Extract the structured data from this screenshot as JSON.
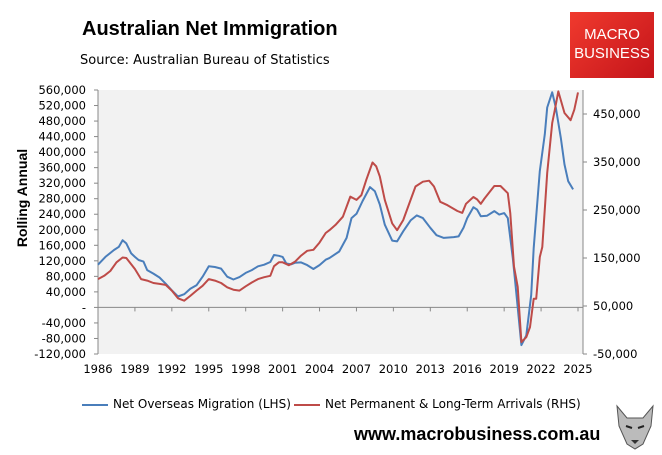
{
  "header": {
    "title": "Australian Net Immigration",
    "source": "Source: Australian Bureau of Statistics",
    "logo_text": "MACRO BUSINESS"
  },
  "footer": {
    "website": "www.macrobusiness.com.au"
  },
  "colors": {
    "nom": "#4a7ebb",
    "plt": "#be4b48",
    "plot_bg": "#f2f2f2",
    "logo": "#e0252a"
  },
  "chart_data": {
    "type": "line",
    "title": "Australian Net Immigration",
    "ylabel": "Rolling Annual",
    "xlim": [
      1986,
      2025
    ],
    "x_ticks": [
      "1986",
      "1989",
      "1992",
      "1995",
      "1998",
      "2001",
      "2004",
      "2007",
      "2010",
      "2013",
      "2016",
      "2019",
      "2022",
      "2025"
    ],
    "ylim_left": [
      -120000,
      560000
    ],
    "y_ticks_left": [
      "560,000",
      "520,000",
      "480,000",
      "440,000",
      "400,000",
      "360,000",
      "320,000",
      "280,000",
      "240,000",
      "200,000",
      "160,000",
      "120,000",
      "80,000",
      "40,000",
      "-",
      "-40,000",
      "-80,000",
      "-120,000"
    ],
    "ylim_right": [
      -50000,
      500000
    ],
    "y_ticks_right": [
      "450,000",
      "350,000",
      "250,000",
      "150,000",
      "50,000",
      "-50,000"
    ],
    "grid": false,
    "legend": "bottom",
    "series": [
      {
        "name": "Net Overseas Migration (LHS)",
        "axis": "left",
        "color": "#4a7ebb",
        "points": [
          [
            1986.0,
            110000
          ],
          [
            1986.6,
            130000
          ],
          [
            1987.3,
            148000
          ],
          [
            1987.7,
            156000
          ],
          [
            1988.0,
            173000
          ],
          [
            1988.3,
            165000
          ],
          [
            1988.7,
            139000
          ],
          [
            1989.0,
            130000
          ],
          [
            1989.3,
            122000
          ],
          [
            1989.7,
            118000
          ],
          [
            1990.0,
            96000
          ],
          [
            1990.5,
            87000
          ],
          [
            1991.0,
            77000
          ],
          [
            1991.5,
            61000
          ],
          [
            1992.0,
            44000
          ],
          [
            1992.5,
            28000
          ],
          [
            1993.0,
            34000
          ],
          [
            1993.5,
            48000
          ],
          [
            1994.0,
            57000
          ],
          [
            1994.5,
            79000
          ],
          [
            1995.0,
            106000
          ],
          [
            1995.5,
            104000
          ],
          [
            1996.0,
            100000
          ],
          [
            1996.5,
            79000
          ],
          [
            1997.0,
            72000
          ],
          [
            1997.5,
            78000
          ],
          [
            1998.0,
            89000
          ],
          [
            1998.5,
            96000
          ],
          [
            1999.0,
            106000
          ],
          [
            1999.5,
            110000
          ],
          [
            2000.0,
            117000
          ],
          [
            2000.3,
            135000
          ],
          [
            2000.7,
            133000
          ],
          [
            2001.0,
            130000
          ],
          [
            2001.3,
            113000
          ],
          [
            2001.7,
            111000
          ],
          [
            2002.0,
            115000
          ],
          [
            2002.5,
            116000
          ],
          [
            2003.0,
            109000
          ],
          [
            2003.5,
            99000
          ],
          [
            2004.0,
            109000
          ],
          [
            2004.5,
            123000
          ],
          [
            2004.8,
            127000
          ],
          [
            2005.6,
            144000
          ],
          [
            2006.2,
            179000
          ],
          [
            2006.6,
            230000
          ],
          [
            2007.0,
            241000
          ],
          [
            2007.5,
            274000
          ],
          [
            2008.1,
            310000
          ],
          [
            2008.5,
            299000
          ],
          [
            2008.9,
            265000
          ],
          [
            2009.3,
            213000
          ],
          [
            2009.9,
            172000
          ],
          [
            2010.3,
            170000
          ],
          [
            2010.8,
            196000
          ],
          [
            2011.4,
            224000
          ],
          [
            2011.9,
            237000
          ],
          [
            2012.4,
            230000
          ],
          [
            2013.0,
            205000
          ],
          [
            2013.5,
            186000
          ],
          [
            2014.1,
            179000
          ],
          [
            2014.9,
            181000
          ],
          [
            2015.3,
            183000
          ],
          [
            2015.7,
            205000
          ],
          [
            2016.0,
            230000
          ],
          [
            2016.5,
            258000
          ],
          [
            2016.8,
            252000
          ],
          [
            2017.1,
            235000
          ],
          [
            2017.6,
            236000
          ],
          [
            2018.2,
            248000
          ],
          [
            2018.6,
            239000
          ],
          [
            2019.0,
            243000
          ],
          [
            2019.3,
            230000
          ],
          [
            2019.7,
            127000
          ],
          [
            2019.9,
            66000
          ],
          [
            2020.4,
            -97000
          ],
          [
            2020.8,
            -72000
          ],
          [
            2021.2,
            32000
          ],
          [
            2021.4,
            153000
          ],
          [
            2021.9,
            351000
          ],
          [
            2022.3,
            446000
          ],
          [
            2022.5,
            515000
          ],
          [
            2022.9,
            554000
          ],
          [
            2023.2,
            515000
          ],
          [
            2023.6,
            437000
          ],
          [
            2023.9,
            368000
          ],
          [
            2024.2,
            325000
          ],
          [
            2024.6,
            304000
          ]
        ]
      },
      {
        "name": "Net Permanent & Long-Term Arrivals (RHS)",
        "axis": "right",
        "color": "#be4b48",
        "points": [
          [
            1986.0,
            106000
          ],
          [
            1986.5,
            113000
          ],
          [
            1987.0,
            123000
          ],
          [
            1987.5,
            141000
          ],
          [
            1988.0,
            151000
          ],
          [
            1988.3,
            150000
          ],
          [
            1988.7,
            137000
          ],
          [
            1989.0,
            127000
          ],
          [
            1989.5,
            106000
          ],
          [
            1990.0,
            103000
          ],
          [
            1990.5,
            98000
          ],
          [
            1991.0,
            96000
          ],
          [
            1991.5,
            94000
          ],
          [
            1992.0,
            82000
          ],
          [
            1992.5,
            66000
          ],
          [
            1993.0,
            61000
          ],
          [
            1993.5,
            71000
          ],
          [
            1994.0,
            82000
          ],
          [
            1994.5,
            92000
          ],
          [
            1995.0,
            106000
          ],
          [
            1995.5,
            103000
          ],
          [
            1996.0,
            98000
          ],
          [
            1996.5,
            89000
          ],
          [
            1997.0,
            84000
          ],
          [
            1997.5,
            82000
          ],
          [
            1998.0,
            91000
          ],
          [
            1998.5,
            99000
          ],
          [
            1999.0,
            106000
          ],
          [
            1999.5,
            110000
          ],
          [
            2000.0,
            113000
          ],
          [
            2000.3,
            133000
          ],
          [
            2000.7,
            141000
          ],
          [
            2001.0,
            141000
          ],
          [
            2001.5,
            135000
          ],
          [
            2002.0,
            142000
          ],
          [
            2002.5,
            155000
          ],
          [
            2003.0,
            165000
          ],
          [
            2003.5,
            167000
          ],
          [
            2004.0,
            182000
          ],
          [
            2004.5,
            202000
          ],
          [
            2004.8,
            208000
          ],
          [
            2005.3,
            219000
          ],
          [
            2005.9,
            236000
          ],
          [
            2006.5,
            278000
          ],
          [
            2007.0,
            271000
          ],
          [
            2007.4,
            281000
          ],
          [
            2007.8,
            313000
          ],
          [
            2008.3,
            349000
          ],
          [
            2008.6,
            341000
          ],
          [
            2008.9,
            320000
          ],
          [
            2009.3,
            271000
          ],
          [
            2009.9,
            222000
          ],
          [
            2010.3,
            208000
          ],
          [
            2010.8,
            229000
          ],
          [
            2011.4,
            271000
          ],
          [
            2011.8,
            299000
          ],
          [
            2012.4,
            309000
          ],
          [
            2012.9,
            311000
          ],
          [
            2013.3,
            299000
          ],
          [
            2013.8,
            267000
          ],
          [
            2014.4,
            260000
          ],
          [
            2015.2,
            248000
          ],
          [
            2015.6,
            244000
          ],
          [
            2015.9,
            263000
          ],
          [
            2016.5,
            277000
          ],
          [
            2016.8,
            272000
          ],
          [
            2017.1,
            263000
          ],
          [
            2017.4,
            274000
          ],
          [
            2018.2,
            300000
          ],
          [
            2018.7,
            300000
          ],
          [
            2019.3,
            285000
          ],
          [
            2019.5,
            243000
          ],
          [
            2019.8,
            132000
          ],
          [
            2020.1,
            90000
          ],
          [
            2020.4,
            -25000
          ],
          [
            2020.8,
            -15000
          ],
          [
            2021.1,
            6000
          ],
          [
            2021.4,
            65000
          ],
          [
            2021.6,
            65000
          ],
          [
            2021.9,
            152000
          ],
          [
            2022.1,
            173000
          ],
          [
            2022.5,
            327000
          ],
          [
            2022.9,
            431000
          ],
          [
            2023.1,
            456000
          ],
          [
            2023.4,
            497000
          ],
          [
            2023.9,
            452000
          ],
          [
            2024.4,
            437000
          ],
          [
            2024.7,
            459000
          ],
          [
            2025.0,
            495000
          ]
        ]
      }
    ]
  }
}
